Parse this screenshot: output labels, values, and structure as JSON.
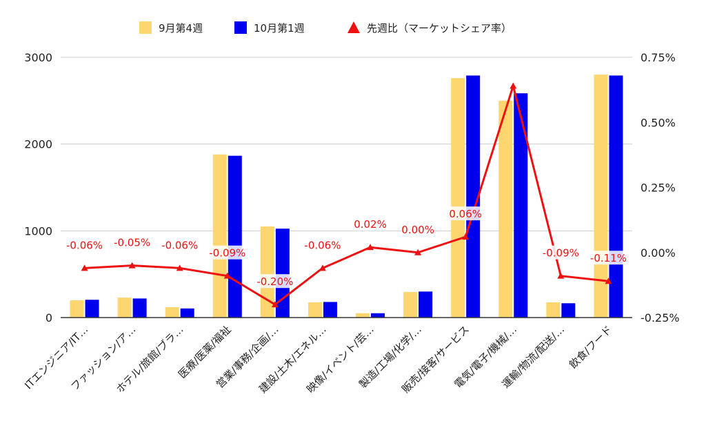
{
  "chart_data": {
    "type": "bar",
    "title": "",
    "xlabel": "",
    "ylabel": "",
    "categories": [
      "ITエンジニア/IT…",
      "ファッション/ア…",
      "ホテル/旅館/ブラ…",
      "医療/医薬/福祉",
      "営業/事務/企画/…",
      "建設/土木/エネル…",
      "映像/イベント/芸…",
      "製造/工場/化学/…",
      "販売/接客/サービス",
      "電気/電子/機械/…",
      "運輸/物流/配送/…",
      "飲食/フード"
    ],
    "series": [
      {
        "name": "9月第4週",
        "color": "#fdd66f",
        "axis": "left",
        "values": [
          200,
          230,
          120,
          1880,
          1050,
          175,
          50,
          295,
          2760,
          2500,
          175,
          2800
        ]
      },
      {
        "name": "10月第1週",
        "color": "#0000ee",
        "axis": "left",
        "values": [
          205,
          220,
          105,
          1865,
          1025,
          180,
          50,
          300,
          2790,
          2585,
          165,
          2790
        ]
      },
      {
        "name": "先週比（マーケットシェア率）",
        "color": "#ee1111",
        "axis": "right",
        "type": "line",
        "marker": "triangle",
        "values": [
          -0.06,
          -0.05,
          -0.06,
          -0.09,
          -0.2,
          -0.06,
          0.02,
          0.0,
          0.06,
          0.64,
          -0.09,
          -0.11
        ],
        "labels": [
          "-0.06%",
          "-0.05%",
          "-0.06%",
          "-0.09%",
          "-0.20%",
          "-0.06%",
          "0.02%",
          "0.00%",
          "0.06%",
          "",
          "-0.09%",
          "-0.11%"
        ]
      }
    ],
    "ylim": [
      0,
      3000
    ],
    "yticks": [
      "0",
      "1000",
      "2000",
      "3000"
    ],
    "y2lim": [
      -0.25,
      0.75
    ],
    "y2ticks": [
      "-0.25%",
      "0.00%",
      "0.25%",
      "0.50%",
      "0.75%"
    ],
    "grid": true,
    "legend_position": "top"
  }
}
